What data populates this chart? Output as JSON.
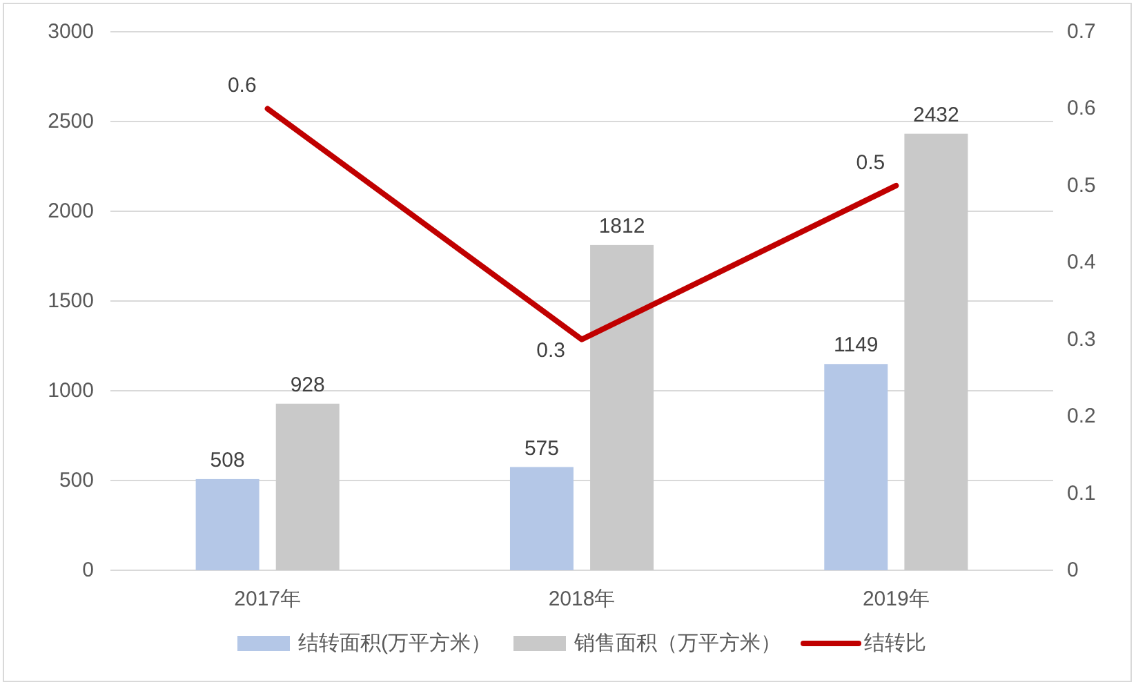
{
  "chart_data": {
    "type": "bar",
    "categories": [
      "2017年",
      "2018年",
      "2019年"
    ],
    "series": [
      {
        "name": "结转面积(万平方米）",
        "color": "#b4c7e7",
        "values": [
          508,
          575,
          1149
        ]
      },
      {
        "name": "销售面积（万平方米）",
        "color": "#c9c9c9",
        "values": [
          928,
          1812,
          2432
        ]
      },
      {
        "name": "结转比",
        "type": "line",
        "axis": "y2",
        "color": "#c00000",
        "values": [
          0.6,
          0.3,
          0.5
        ]
      }
    ],
    "ylim": [
      0,
      3000
    ],
    "yticks": [
      0,
      500,
      1000,
      1500,
      2000,
      2500,
      3000
    ],
    "y2lim": [
      0,
      0.7
    ],
    "y2ticks": [
      0,
      0.1,
      0.2,
      0.3,
      0.4,
      0.5,
      0.6,
      0.7
    ],
    "grid": "y",
    "legend": "bottom",
    "data_labels": true
  }
}
